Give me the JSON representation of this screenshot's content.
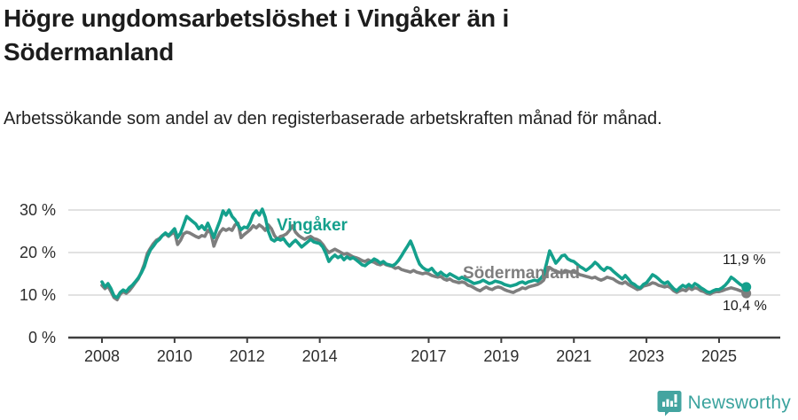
{
  "header": {
    "title": "Högre ungdomsarbetslöshet i Vingåker än i Södermanland",
    "subtitle": "Arbetssökande som andel av den registerbaserade arbetskraften månad för månad."
  },
  "footer": {
    "brand": "Newsworthy",
    "brand_color": "#3ba39e",
    "logo_icon": "bar-chart-exclamation-bubble-icon"
  },
  "colors": {
    "vingaker": "#14a08c",
    "sodermanland": "#7e7e7e",
    "grid": "#d9d9d9",
    "axis": "#3f3f3f",
    "tick_text": "#2d2d2d",
    "end_label_text": "#1b1b1b"
  },
  "chart_data": {
    "type": "line",
    "title": "Högre ungdomsarbetslöshet i Vingåker än i Södermanland",
    "subtitle": "Arbetssökande som andel av den registerbaserade arbetskraften månad för månad.",
    "frequency": "monthly",
    "x_start": "2008-01",
    "x_end": "2025-10",
    "x_tick_years": [
      2008,
      2010,
      2012,
      2014,
      2017,
      2019,
      2021,
      2023,
      2025
    ],
    "y_ticks": [
      0,
      10,
      20,
      30
    ],
    "y_tick_suffix": " %",
    "ylim": [
      0,
      33
    ],
    "grid": "horizontal",
    "legend_position": "inline-labels",
    "series": [
      {
        "name": "Vingåker",
        "color": "#14a08c",
        "end_value": 11.9,
        "end_label": "11,9 %",
        "values": [
          13.1,
          11.9,
          12.7,
          11.5,
          9.8,
          9.4,
          10.6,
          11.2,
          10.8,
          11.7,
          12.3,
          13.1,
          14.0,
          15.2,
          16.7,
          19.0,
          20.6,
          21.5,
          22.5,
          23.1,
          24.0,
          24.6,
          24.0,
          24.8,
          25.6,
          23.5,
          24.6,
          26.5,
          28.5,
          27.9,
          27.3,
          26.7,
          25.6,
          26.3,
          25.4,
          26.9,
          25.2,
          23.5,
          25.6,
          27.5,
          29.8,
          28.8,
          30.0,
          28.5,
          27.7,
          26.5,
          25.4,
          26.0,
          25.8,
          27.1,
          29.0,
          29.8,
          28.8,
          30.2,
          28.3,
          25.0,
          23.1,
          22.7,
          23.3,
          22.9,
          23.3,
          22.3,
          21.5,
          22.3,
          22.9,
          22.1,
          21.3,
          21.9,
          22.5,
          23.1,
          22.5,
          22.3,
          22.1,
          21.3,
          19.8,
          17.9,
          18.8,
          19.4,
          18.8,
          19.2,
          18.3,
          19.0,
          18.5,
          18.8,
          18.3,
          17.7,
          17.1,
          16.9,
          17.5,
          17.9,
          18.5,
          18.1,
          17.5,
          17.9,
          17.3,
          17.1,
          16.9,
          17.3,
          18.1,
          19.2,
          20.4,
          21.5,
          22.7,
          21.0,
          19.0,
          17.3,
          16.5,
          16.0,
          15.8,
          16.3,
          15.4,
          14.8,
          15.4,
          14.8,
          14.4,
          15.0,
          14.6,
          14.2,
          13.8,
          14.2,
          13.8,
          13.5,
          13.1,
          12.7,
          12.9,
          13.1,
          13.5,
          13.1,
          12.7,
          12.9,
          13.3,
          13.1,
          12.9,
          12.5,
          12.3,
          12.1,
          12.3,
          12.5,
          12.9,
          13.1,
          12.7,
          13.1,
          13.3,
          13.5,
          13.3,
          13.9,
          14.8,
          17.5,
          20.4,
          19.0,
          17.5,
          18.3,
          19.2,
          19.4,
          18.5,
          18.1,
          17.9,
          17.3,
          16.7,
          16.3,
          15.8,
          16.3,
          16.9,
          17.7,
          17.1,
          16.3,
          15.8,
          16.5,
          16.3,
          15.6,
          15.0,
          14.4,
          13.8,
          14.6,
          13.8,
          12.9,
          12.5,
          11.9,
          11.7,
          12.5,
          12.9,
          13.8,
          14.8,
          14.4,
          13.8,
          13.1,
          12.7,
          13.1,
          12.3,
          11.5,
          11.0,
          11.7,
          12.3,
          11.9,
          12.5,
          11.9,
          12.7,
          12.3,
          11.7,
          11.3,
          10.8,
          10.6,
          11.0,
          11.3,
          11.3,
          11.7,
          12.3,
          13.1,
          14.2,
          13.7,
          13.1,
          12.5,
          12.1,
          11.9
        ]
      },
      {
        "name": "Södermanland",
        "color": "#7e7e7e",
        "end_value": 10.4,
        "end_label": "10,4 %",
        "values": [
          12.3,
          11.5,
          12.1,
          10.8,
          9.4,
          8.9,
          10.2,
          10.8,
          10.4,
          11.0,
          11.9,
          12.9,
          13.8,
          15.4,
          17.3,
          19.8,
          21.0,
          22.1,
          22.9,
          23.3,
          24.0,
          24.4,
          23.8,
          24.4,
          24.8,
          21.9,
          22.9,
          24.4,
          24.8,
          24.6,
          24.2,
          23.8,
          23.5,
          24.0,
          23.8,
          25.2,
          24.6,
          21.5,
          23.3,
          24.8,
          25.6,
          25.2,
          25.6,
          25.2,
          26.5,
          26.9,
          23.5,
          24.2,
          24.8,
          25.4,
          26.3,
          25.8,
          26.5,
          26.0,
          25.2,
          26.5,
          25.6,
          24.0,
          23.1,
          23.8,
          24.0,
          24.4,
          25.2,
          26.3,
          24.8,
          24.0,
          23.5,
          23.1,
          23.5,
          23.8,
          23.3,
          23.1,
          22.7,
          21.9,
          20.8,
          20.0,
          20.4,
          20.8,
          20.4,
          20.0,
          19.6,
          19.8,
          19.4,
          19.0,
          18.8,
          18.5,
          18.1,
          17.9,
          18.3,
          17.9,
          17.7,
          17.3,
          17.1,
          17.5,
          17.1,
          16.9,
          16.7,
          16.3,
          16.5,
          16.0,
          15.8,
          15.6,
          15.4,
          15.8,
          15.4,
          15.2,
          15.0,
          15.2,
          15.0,
          14.6,
          14.4,
          14.2,
          14.4,
          13.8,
          13.5,
          13.8,
          13.3,
          13.1,
          12.9,
          13.1,
          12.9,
          12.3,
          12.1,
          11.7,
          11.3,
          11.0,
          11.5,
          11.9,
          11.5,
          11.3,
          11.7,
          11.9,
          11.7,
          11.3,
          11.0,
          10.8,
          10.6,
          11.0,
          11.3,
          11.7,
          11.5,
          11.9,
          12.1,
          12.3,
          12.5,
          12.9,
          13.5,
          15.2,
          16.5,
          16.0,
          15.6,
          15.4,
          15.2,
          15.4,
          15.6,
          15.4,
          15.4,
          15.2,
          14.8,
          14.6,
          14.4,
          14.2,
          14.0,
          14.2,
          13.8,
          13.5,
          13.8,
          14.2,
          14.0,
          13.8,
          13.3,
          12.9,
          12.7,
          13.1,
          12.5,
          12.1,
          11.7,
          11.3,
          11.5,
          12.1,
          12.3,
          12.5,
          12.9,
          12.7,
          12.3,
          12.1,
          11.9,
          12.1,
          11.7,
          11.0,
          10.6,
          11.0,
          11.3,
          11.0,
          11.7,
          11.3,
          11.7,
          11.5,
          11.0,
          10.8,
          10.4,
          10.2,
          10.6,
          10.8,
          10.8,
          11.0,
          11.3,
          11.5,
          11.7,
          11.5,
          11.3,
          11.0,
          10.8,
          10.4
        ]
      }
    ]
  }
}
